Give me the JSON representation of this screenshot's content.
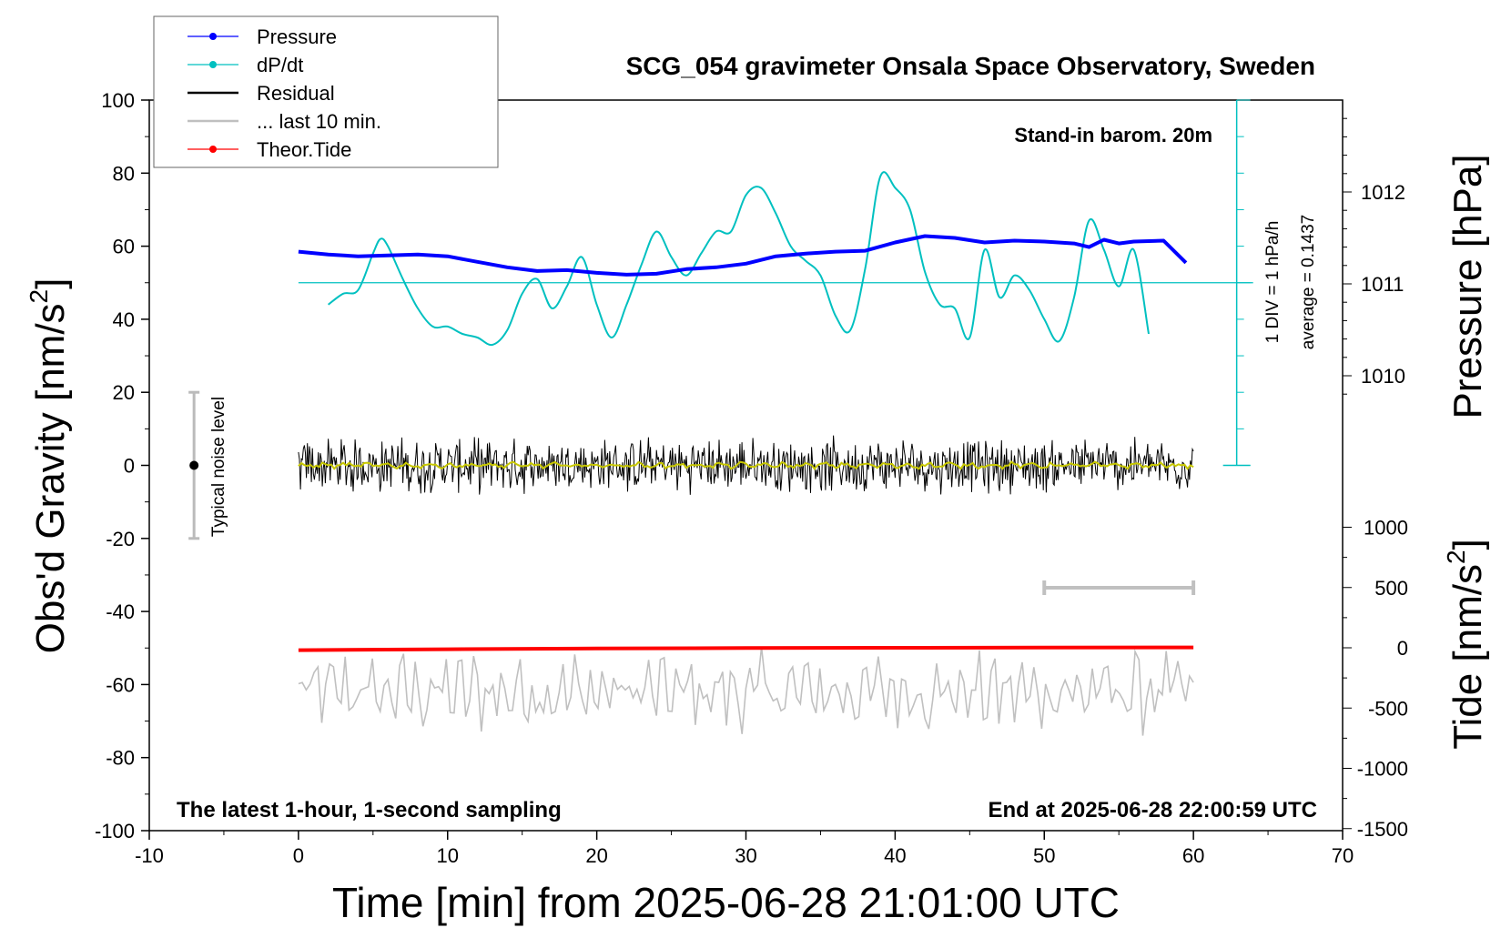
{
  "chart_data": {
    "type": "line",
    "title": "SCG_054 gravimeter Onsala Space Observatory, Sweden",
    "xlabel": "Time [min] from 2025-06-28 21:01:00 UTC",
    "ylabel": "Obs'd Gravity [nm/s",
    "ylabel_sup": "2",
    "ylabel_end": "]",
    "y2label": "Pressure [hPa]",
    "y3label": "Tide [nm/s",
    "y3label_sup": "2",
    "y3label_end": "]",
    "xlim": [
      -10,
      70
    ],
    "ylim": [
      -100,
      100
    ],
    "x_ticks": [
      -10,
      0,
      10,
      20,
      30,
      40,
      50,
      60,
      70
    ],
    "y_ticks": [
      -100,
      -80,
      -60,
      -40,
      -20,
      0,
      20,
      40,
      60,
      80,
      100
    ],
    "pressure_ticks": [
      1010,
      1011,
      1012
    ],
    "tide_ticks": [
      1000,
      500,
      0,
      -500,
      -1000,
      -1500
    ],
    "grid": false,
    "legend_position": "top-left",
    "legend": [
      {
        "name": "Pressure",
        "color": "#0000ff",
        "marker": "dot"
      },
      {
        "name": "dP/dt",
        "color": "#00c0c0",
        "marker": "dot"
      },
      {
        "name": "Residual",
        "color": "#000000",
        "marker": "none"
      },
      {
        "name": "... last 10 min.",
        "color": "#c0c0c0",
        "marker": "none"
      },
      {
        "name": "Theor.Tide",
        "color": "#ff0000",
        "marker": "dot"
      }
    ],
    "annotations": {
      "barometer": "Stand-in barom. 20m",
      "scale_div": "1 DIV = 1 hPa/h",
      "average": "average = 0.1437",
      "noise": "Typical noise level",
      "noise_range": [
        -20,
        20
      ],
      "sampling": "The latest 1-hour, 1-second sampling",
      "end_time": "End at 2025-06-28 22:00:59 UTC",
      "last10_bar_x": [
        50,
        60
      ],
      "dpdt_zero_line_y": 50
    },
    "series": [
      {
        "name": "Pressure",
        "units": "hPa",
        "x": [
          0,
          2,
          4,
          6,
          8,
          10,
          12,
          14,
          16,
          18,
          20,
          22,
          24,
          26,
          28,
          30,
          32,
          34,
          36,
          38,
          40,
          42,
          44,
          46,
          48,
          50,
          52,
          53,
          54,
          55,
          56,
          58,
          59.5
        ],
        "y": [
          1011.35,
          1011.32,
          1011.3,
          1011.31,
          1011.32,
          1011.3,
          1011.24,
          1011.18,
          1011.14,
          1011.15,
          1011.12,
          1011.1,
          1011.11,
          1011.16,
          1011.18,
          1011.22,
          1011.3,
          1011.33,
          1011.35,
          1011.36,
          1011.45,
          1011.52,
          1011.5,
          1011.45,
          1011.47,
          1011.46,
          1011.44,
          1011.4,
          1011.48,
          1011.44,
          1011.46,
          1011.47,
          1011.23
        ]
      },
      {
        "name": "dP/dt",
        "units": "nm/s2 axis",
        "x": [
          2,
          3,
          4,
          5,
          5.5,
          6,
          7,
          8,
          9,
          10,
          11,
          12,
          13,
          14,
          15,
          16,
          17,
          18,
          19,
          20,
          21,
          22,
          23,
          24,
          25,
          26,
          27,
          28,
          29,
          30,
          31,
          32,
          33,
          34,
          35,
          36,
          37,
          38,
          39,
          40,
          41,
          42,
          43,
          44,
          45,
          46,
          47,
          48,
          49,
          50,
          51,
          52,
          53,
          54,
          55,
          56,
          57
        ],
        "y": [
          44,
          47,
          48,
          58,
          62,
          60,
          51,
          43,
          38,
          38,
          36,
          35,
          33,
          37,
          47,
          51,
          43,
          49,
          57,
          44,
          35,
          44,
          55,
          64,
          57,
          52,
          58,
          64,
          64,
          74,
          76,
          69,
          60,
          56,
          52,
          41,
          37,
          54,
          79,
          76,
          70,
          53,
          44,
          43,
          35,
          59,
          46,
          52,
          48,
          40,
          34,
          46,
          67,
          59,
          49,
          59,
          36
        ]
      },
      {
        "name": "Residual",
        "units": "nm/s2",
        "x_range": [
          0,
          60
        ],
        "amplitude": 7
      },
      {
        "name": "Residual smoothed",
        "units": "nm/s2",
        "x_range": [
          0,
          60
        ],
        "amplitude": 1
      },
      {
        "name": "Theor.Tide",
        "units": "nm/s2 (tide axis)",
        "x": [
          0,
          10,
          20,
          30,
          40,
          50,
          60
        ],
        "y": [
          -20,
          -12,
          -6,
          -2,
          0,
          2,
          3
        ]
      },
      {
        "name": "... last 10 min.",
        "units": "nm/s2",
        "x_range": [
          0,
          60
        ],
        "center": -62,
        "amplitude": 9
      }
    ]
  }
}
